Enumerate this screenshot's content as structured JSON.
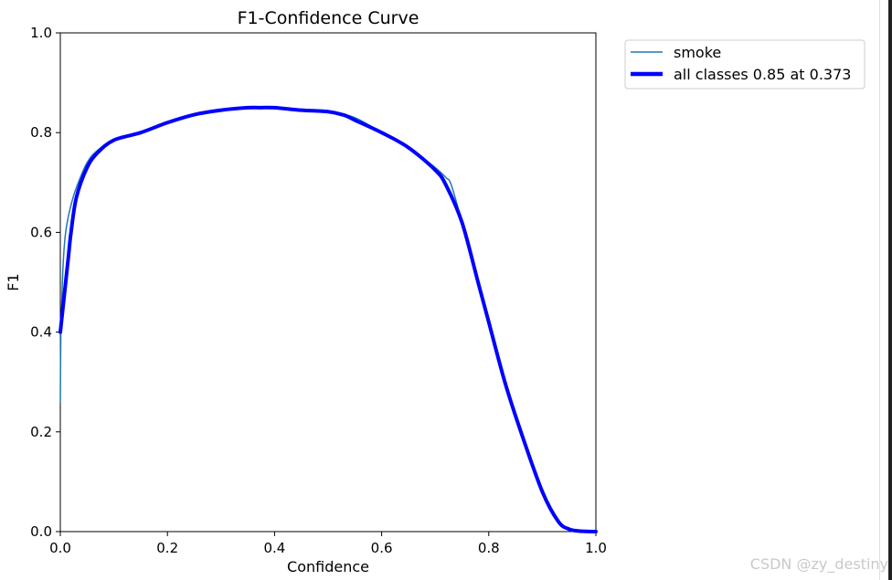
{
  "chart_data": {
    "type": "line",
    "title": "F1-Confidence Curve",
    "xlabel": "Confidence",
    "ylabel": "F1",
    "xlim": [
      0,
      1
    ],
    "ylim": [
      0,
      1
    ],
    "xticks": [
      "0.0",
      "0.2",
      "0.4",
      "0.6",
      "0.8",
      "1.0"
    ],
    "yticks": [
      "0.0",
      "0.2",
      "0.4",
      "0.6",
      "0.8",
      "1.0"
    ],
    "legend_position": "outside-top-right",
    "grid": false,
    "series": [
      {
        "name": "smoke",
        "color": "#1f77b4",
        "x": [
          0.0,
          0.001,
          0.003,
          0.005,
          0.008,
          0.012,
          0.02,
          0.03,
          0.05,
          0.07,
          0.1,
          0.15,
          0.2,
          0.25,
          0.3,
          0.35,
          0.373,
          0.4,
          0.45,
          0.5,
          0.55,
          0.6,
          0.65,
          0.7,
          0.72,
          0.73,
          0.75,
          0.78,
          0.8,
          0.83,
          0.86,
          0.9,
          0.93,
          0.95,
          0.97,
          1.0
        ],
        "y": [
          0.26,
          0.4,
          0.47,
          0.53,
          0.58,
          0.615,
          0.655,
          0.69,
          0.74,
          0.765,
          0.785,
          0.8,
          0.82,
          0.836,
          0.845,
          0.85,
          0.85,
          0.85,
          0.845,
          0.843,
          0.83,
          0.8,
          0.77,
          0.73,
          0.71,
          0.695,
          0.62,
          0.5,
          0.42,
          0.3,
          0.2,
          0.08,
          0.02,
          0.005,
          0.001,
          0.0
        ]
      },
      {
        "name": "all classes 0.85 at 0.373",
        "color": "#0000ff",
        "x": [
          0.0,
          0.005,
          0.01,
          0.015,
          0.02,
          0.03,
          0.05,
          0.07,
          0.1,
          0.15,
          0.2,
          0.25,
          0.3,
          0.35,
          0.373,
          0.4,
          0.45,
          0.5,
          0.53,
          0.55,
          0.6,
          0.65,
          0.7,
          0.72,
          0.75,
          0.78,
          0.8,
          0.83,
          0.86,
          0.9,
          0.93,
          0.95,
          0.97,
          1.0
        ],
        "y": [
          0.4,
          0.45,
          0.5,
          0.55,
          0.6,
          0.67,
          0.73,
          0.76,
          0.785,
          0.8,
          0.82,
          0.836,
          0.845,
          0.85,
          0.85,
          0.85,
          0.845,
          0.842,
          0.835,
          0.825,
          0.8,
          0.77,
          0.725,
          0.695,
          0.62,
          0.5,
          0.42,
          0.3,
          0.2,
          0.08,
          0.02,
          0.005,
          0.001,
          0.0
        ]
      }
    ]
  },
  "watermark": "CSDN @zy_destiny"
}
